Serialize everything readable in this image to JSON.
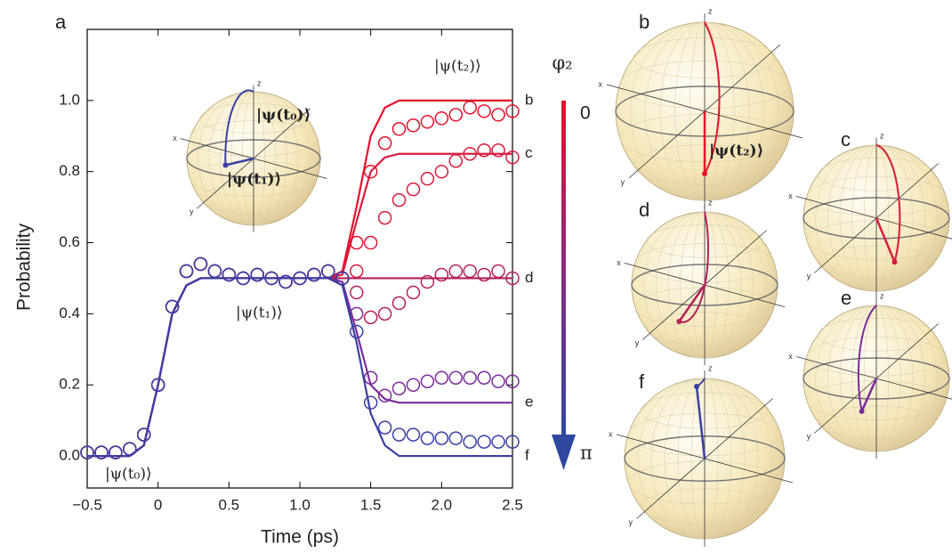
{
  "chart_data": {
    "type": "line",
    "panel": "a",
    "xlabel": "Time (ps)",
    "ylabel": "Probability",
    "xlim": [
      -0.5,
      2.5
    ],
    "xticks": [
      {
        "value": -0.5,
        "label": "−0.5"
      },
      0,
      0.5,
      {
        "value": 1,
        "label": "1.0"
      },
      1.5,
      {
        "value": 2,
        "label": "2.0"
      },
      2.5
    ],
    "ylim": [
      -0.09,
      1.2
    ],
    "yticks": [
      {
        "value": 0,
        "label": "0.0"
      },
      0.2,
      0.4,
      0.6,
      0.8,
      {
        "value": 1,
        "label": "1.0"
      }
    ],
    "x": [
      -0.5,
      -0.4,
      -0.3,
      -0.2,
      -0.1,
      0,
      0.1,
      0.2,
      0.3,
      0.4,
      0.5,
      0.6,
      0.7,
      0.8,
      0.9,
      1.0,
      1.1,
      1.2,
      1.3,
      1.4,
      1.5,
      1.6,
      1.7,
      1.8,
      1.9,
      2.0,
      2.1,
      2.2,
      2.3,
      2.4,
      2.5
    ],
    "series": [
      {
        "name": "b",
        "color": "#e3122c",
        "values": [
          0,
          0,
          0,
          0,
          0.03,
          0.2,
          0.4,
          0.48,
          0.5,
          0.5,
          0.5,
          0.5,
          0.5,
          0.5,
          0.5,
          0.5,
          0.5,
          0.5,
          0.52,
          0.7,
          0.9,
          0.98,
          1,
          1,
          1,
          1,
          1,
          1,
          1,
          1,
          1
        ],
        "measured": [
          0.01,
          0.01,
          0.01,
          0.02,
          0.06,
          0.2,
          0.42,
          0.52,
          0.54,
          0.52,
          0.51,
          0.5,
          0.51,
          0.5,
          0.49,
          0.5,
          0.51,
          0.52,
          0.5,
          0.6,
          0.8,
          0.88,
          0.92,
          0.93,
          0.94,
          0.95,
          0.96,
          0.98,
          0.97,
          0.96,
          0.97
        ]
      },
      {
        "name": "c",
        "color": "#d81c3e",
        "values": [
          0,
          0,
          0,
          0,
          0.03,
          0.2,
          0.4,
          0.48,
          0.5,
          0.5,
          0.5,
          0.5,
          0.5,
          0.5,
          0.5,
          0.5,
          0.5,
          0.5,
          0.51,
          0.66,
          0.8,
          0.84,
          0.85,
          0.85,
          0.85,
          0.85,
          0.85,
          0.85,
          0.85,
          0.85,
          0.85
        ],
        "measured": [
          0.01,
          0.01,
          0.01,
          0.02,
          0.06,
          0.2,
          0.42,
          0.52,
          0.54,
          0.52,
          0.51,
          0.5,
          0.51,
          0.5,
          0.49,
          0.5,
          0.51,
          0.52,
          0.5,
          0.52,
          0.6,
          0.67,
          0.72,
          0.75,
          0.78,
          0.8,
          0.83,
          0.85,
          0.86,
          0.86,
          0.84
        ]
      },
      {
        "name": "d",
        "color": "#b4205a",
        "values": [
          0,
          0,
          0,
          0,
          0.03,
          0.2,
          0.4,
          0.48,
          0.5,
          0.5,
          0.5,
          0.5,
          0.5,
          0.5,
          0.5,
          0.5,
          0.5,
          0.5,
          0.5,
          0.5,
          0.5,
          0.5,
          0.5,
          0.5,
          0.5,
          0.5,
          0.5,
          0.5,
          0.5,
          0.5,
          0.5
        ],
        "measured": [
          0.01,
          0.01,
          0.01,
          0.02,
          0.06,
          0.2,
          0.42,
          0.52,
          0.54,
          0.52,
          0.51,
          0.5,
          0.51,
          0.5,
          0.49,
          0.5,
          0.51,
          0.52,
          0.5,
          0.46,
          0.39,
          0.4,
          0.43,
          0.46,
          0.49,
          0.51,
          0.52,
          0.52,
          0.51,
          0.52,
          0.5
        ]
      },
      {
        "name": "e",
        "color": "#7a2c9c",
        "values": [
          0,
          0,
          0,
          0,
          0.03,
          0.2,
          0.4,
          0.48,
          0.5,
          0.5,
          0.5,
          0.5,
          0.5,
          0.5,
          0.5,
          0.5,
          0.5,
          0.5,
          0.49,
          0.35,
          0.2,
          0.16,
          0.15,
          0.15,
          0.15,
          0.15,
          0.15,
          0.15,
          0.15,
          0.15,
          0.15
        ],
        "measured": [
          0.01,
          0.01,
          0.01,
          0.02,
          0.06,
          0.2,
          0.42,
          0.52,
          0.54,
          0.52,
          0.51,
          0.5,
          0.51,
          0.5,
          0.49,
          0.5,
          0.51,
          0.52,
          0.5,
          0.4,
          0.22,
          0.17,
          0.19,
          0.2,
          0.21,
          0.22,
          0.22,
          0.22,
          0.22,
          0.21,
          0.21
        ]
      },
      {
        "name": "f",
        "color": "#3a3fa2",
        "values": [
          0,
          0,
          0,
          0,
          0.03,
          0.2,
          0.4,
          0.48,
          0.5,
          0.5,
          0.5,
          0.5,
          0.5,
          0.5,
          0.5,
          0.5,
          0.5,
          0.5,
          0.48,
          0.32,
          0.12,
          0.03,
          0,
          0,
          0,
          0,
          0,
          0,
          0,
          0,
          0
        ],
        "measured": [
          0.01,
          0.01,
          0.01,
          0.02,
          0.06,
          0.2,
          0.42,
          0.52,
          0.54,
          0.52,
          0.51,
          0.5,
          0.51,
          0.5,
          0.49,
          0.5,
          0.51,
          0.52,
          0.5,
          0.35,
          0.15,
          0.08,
          0.06,
          0.06,
          0.05,
          0.05,
          0.05,
          0.04,
          0.04,
          0.04,
          0.04
        ]
      }
    ],
    "annotations": [
      "|ψ(t₂)⟩",
      "|ψ(t₁)⟩",
      "|ψ(t₀)⟩"
    ],
    "colorbar": {
      "title": "φ₂",
      "top": "0",
      "bottom": "π"
    },
    "inset": {
      "axes": [
        "x",
        "y",
        "z"
      ],
      "kets": [
        "|ψ(t₀)⟩",
        "|ψ(t₁)⟩"
      ]
    }
  },
  "bloch_spheres": [
    {
      "label": "b",
      "axes": [
        "x",
        "y",
        "z"
      ],
      "ket": "|ψ(t₂)⟩"
    },
    {
      "label": "c",
      "axes": [
        "x",
        "y",
        "z"
      ]
    },
    {
      "label": "d",
      "axes": [
        "x",
        "y",
        "z"
      ]
    },
    {
      "label": "e",
      "axes": [
        "x",
        "y",
        "z"
      ]
    },
    {
      "label": "f",
      "axes": [
        "x",
        "y",
        "z"
      ]
    }
  ]
}
